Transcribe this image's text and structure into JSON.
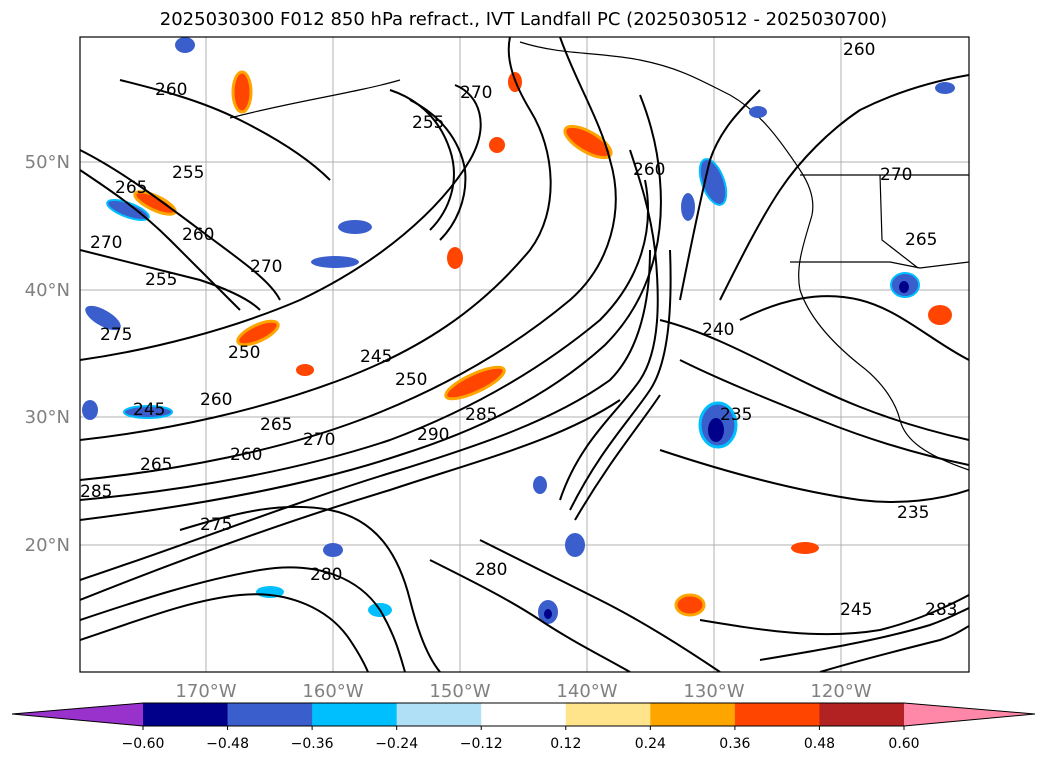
{
  "title": "2025030300 F012 850 hPa refract., IVT Landfall PC (2025030512 - 2025030700)",
  "map": {
    "lat_labels": [
      "50°N",
      "40°N",
      "30°N",
      "20°N"
    ],
    "lon_labels": [
      "170°W",
      "160°W",
      "150°W",
      "140°W",
      "130°W",
      "120°W"
    ],
    "contour_labels": [
      "260",
      "260",
      "260",
      "265",
      "270",
      "255",
      "255",
      "270",
      "270",
      "255",
      "250",
      "275",
      "245",
      "250",
      "245",
      "260",
      "265",
      "265",
      "260",
      "285",
      "275",
      "290",
      "285",
      "280",
      "270",
      "260",
      "240",
      "235",
      "235",
      "245",
      "265",
      "270",
      "283",
      "280"
    ]
  },
  "colorbar": {
    "ticks": [
      "−0.60",
      "−0.48",
      "−0.36",
      "−0.24",
      "−0.12",
      "0.12",
      "0.24",
      "0.36",
      "0.48",
      "0.60"
    ],
    "colors": [
      "#9932cc",
      "#00008b",
      "#3a5fcd",
      "#00bfff",
      "#b0e0f6",
      "#ffffff",
      "#ffe48c",
      "#ffa500",
      "#ff4500",
      "#b22222",
      "#ff88a8"
    ]
  }
}
